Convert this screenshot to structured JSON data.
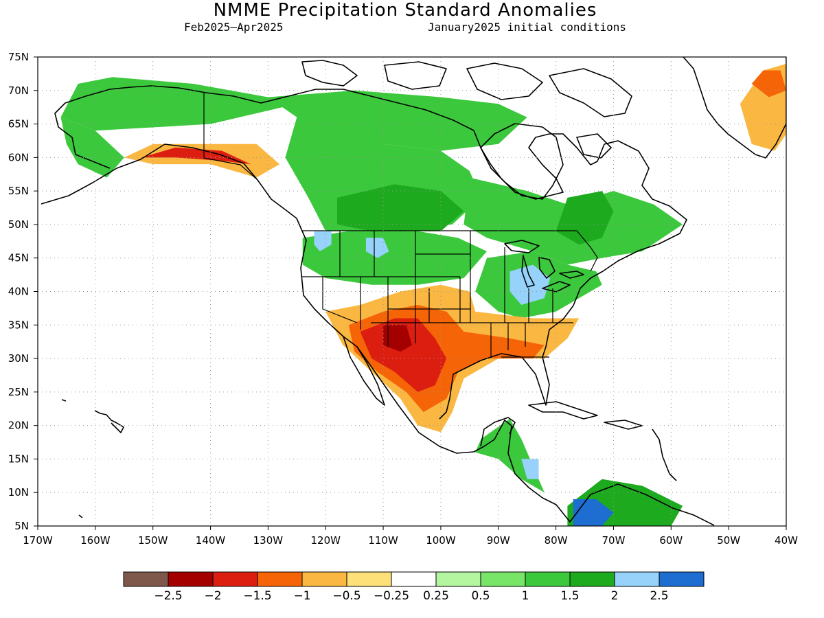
{
  "header": {
    "title": "NMME Precipitation Standard Anomalies",
    "period": "Feb2025–Apr2025",
    "init": "January2025 initial conditions"
  },
  "map": {
    "lon_range": [
      -170,
      -40
    ],
    "lat_range": [
      5,
      75
    ],
    "lon_ticks": [
      {
        "v": -170,
        "t": "170W"
      },
      {
        "v": -160,
        "t": "160W"
      },
      {
        "v": -150,
        "t": "150W"
      },
      {
        "v": -140,
        "t": "140W"
      },
      {
        "v": -130,
        "t": "130W"
      },
      {
        "v": -120,
        "t": "120W"
      },
      {
        "v": -110,
        "t": "110W"
      },
      {
        "v": -100,
        "t": "100W"
      },
      {
        "v": -90,
        "t": "90W"
      },
      {
        "v": -80,
        "t": "80W"
      },
      {
        "v": -70,
        "t": "70W"
      },
      {
        "v": -60,
        "t": "60W"
      },
      {
        "v": -50,
        "t": "50W"
      },
      {
        "v": -40,
        "t": "40W"
      }
    ],
    "lat_ticks": [
      {
        "v": 75,
        "t": "75N"
      },
      {
        "v": 70,
        "t": "70N"
      },
      {
        "v": 65,
        "t": "65N"
      },
      {
        "v": 60,
        "t": "60N"
      },
      {
        "v": 55,
        "t": "55N"
      },
      {
        "v": 50,
        "t": "50N"
      },
      {
        "v": 45,
        "t": "45N"
      },
      {
        "v": 40,
        "t": "40N"
      },
      {
        "v": 35,
        "t": "35N"
      },
      {
        "v": 30,
        "t": "30N"
      },
      {
        "v": 25,
        "t": "25N"
      },
      {
        "v": 20,
        "t": "20N"
      },
      {
        "v": 15,
        "t": "15N"
      },
      {
        "v": 10,
        "t": "10N"
      },
      {
        "v": 5,
        "t": "5N"
      }
    ],
    "grid": true,
    "anomaly_regions": [
      {
        "name": "alaska-north",
        "level": 1.25,
        "pts": [
          [
            -163,
            71
          ],
          [
            -157,
            72
          ],
          [
            -143,
            71
          ],
          [
            -130,
            69
          ],
          [
            -125,
            68
          ],
          [
            -140,
            65
          ],
          [
            -160,
            64
          ],
          [
            -166,
            66
          ]
        ]
      },
      {
        "name": "canada-north",
        "level": 1.25,
        "pts": [
          [
            -130,
            69
          ],
          [
            -115,
            70
          ],
          [
            -100,
            69
          ],
          [
            -90,
            68
          ],
          [
            -85,
            66
          ],
          [
            -90,
            62
          ],
          [
            -100,
            61
          ],
          [
            -110,
            62
          ],
          [
            -120,
            63
          ],
          [
            -125,
            66
          ]
        ]
      },
      {
        "name": "alaska-west",
        "level": 1.25,
        "pts": [
          [
            -166,
            66
          ],
          [
            -160,
            64
          ],
          [
            -155,
            60
          ],
          [
            -158,
            57
          ],
          [
            -163,
            59
          ],
          [
            -165,
            62
          ]
        ]
      },
      {
        "name": "canada-west",
        "level": 1.25,
        "pts": [
          [
            -125,
            66
          ],
          [
            -110,
            62
          ],
          [
            -100,
            61
          ],
          [
            -95,
            58
          ],
          [
            -93,
            54
          ],
          [
            -98,
            50
          ],
          [
            -110,
            49
          ],
          [
            -120,
            49
          ],
          [
            -123,
            54
          ],
          [
            -127,
            60
          ]
        ]
      },
      {
        "name": "canada-prairie",
        "level": 1.75,
        "pts": [
          [
            -118,
            54
          ],
          [
            -108,
            56
          ],
          [
            -100,
            55
          ],
          [
            -96,
            52
          ],
          [
            -100,
            49
          ],
          [
            -112,
            49
          ],
          [
            -118,
            50
          ]
        ]
      },
      {
        "name": "canada-east",
        "level": 1.25,
        "pts": [
          [
            -95,
            57
          ],
          [
            -85,
            55
          ],
          [
            -78,
            53
          ],
          [
            -70,
            55
          ],
          [
            -63,
            53
          ],
          [
            -58,
            50
          ],
          [
            -65,
            46
          ],
          [
            -72,
            45
          ],
          [
            -78,
            44
          ],
          [
            -84,
            46
          ],
          [
            -92,
            48
          ],
          [
            -96,
            50
          ]
        ]
      },
      {
        "name": "quebec-core",
        "level": 1.75,
        "pts": [
          [
            -78,
            54
          ],
          [
            -72,
            55
          ],
          [
            -70,
            52
          ],
          [
            -72,
            48
          ],
          [
            -76,
            47
          ],
          [
            -80,
            49
          ]
        ]
      },
      {
        "name": "nw-conus",
        "level": 1.25,
        "pts": [
          [
            -124,
            48
          ],
          [
            -116,
            49
          ],
          [
            -104,
            49
          ],
          [
            -97,
            48
          ],
          [
            -92,
            46
          ],
          [
            -96,
            42
          ],
          [
            -104,
            41
          ],
          [
            -112,
            41
          ],
          [
            -120,
            42
          ],
          [
            -124,
            44
          ]
        ]
      },
      {
        "name": "montana-wet",
        "level": 2.25,
        "pts": [
          [
            -113,
            48
          ],
          [
            -110,
            48
          ],
          [
            -109,
            46
          ],
          [
            -111,
            45
          ],
          [
            -113,
            46
          ]
        ]
      },
      {
        "name": "wa-wet",
        "level": 2.25,
        "pts": [
          [
            -122,
            49
          ],
          [
            -119,
            49
          ],
          [
            -119,
            47
          ],
          [
            -121,
            46
          ],
          [
            -122,
            47
          ]
        ]
      },
      {
        "name": "ohio-valley",
        "level": 1.25,
        "pts": [
          [
            -92,
            45
          ],
          [
            -84,
            46
          ],
          [
            -78,
            44
          ],
          [
            -73,
            43
          ],
          [
            -72,
            41
          ],
          [
            -76,
            39
          ],
          [
            -80,
            37
          ],
          [
            -86,
            36
          ],
          [
            -90,
            37
          ],
          [
            -94,
            40
          ]
        ]
      },
      {
        "name": "great-lakes-wet",
        "level": 2.25,
        "pts": [
          [
            -88,
            43
          ],
          [
            -84,
            44
          ],
          [
            -81,
            42
          ],
          [
            -82,
            39
          ],
          [
            -86,
            38
          ],
          [
            -88,
            40
          ]
        ]
      },
      {
        "name": "sw-dry-outer",
        "level": -0.75,
        "pts": [
          [
            -120,
            37
          ],
          [
            -114,
            38
          ],
          [
            -107,
            40
          ],
          [
            -100,
            41
          ],
          [
            -95,
            40
          ],
          [
            -94,
            37
          ],
          [
            -84,
            36
          ],
          [
            -76,
            36
          ],
          [
            -78,
            33
          ],
          [
            -82,
            30
          ],
          [
            -90,
            30
          ],
          [
            -96,
            27
          ],
          [
            -98,
            22
          ],
          [
            -100,
            19
          ],
          [
            -104,
            20
          ],
          [
            -107,
            24
          ],
          [
            -112,
            28
          ],
          [
            -117,
            32
          ]
        ]
      },
      {
        "name": "sw-dry-mid",
        "level": -1.25,
        "pts": [
          [
            -116,
            35
          ],
          [
            -110,
            37
          ],
          [
            -104,
            38
          ],
          [
            -99,
            37
          ],
          [
            -96,
            34
          ],
          [
            -88,
            33
          ],
          [
            -82,
            32
          ],
          [
            -84,
            30
          ],
          [
            -92,
            30
          ],
          [
            -97,
            28
          ],
          [
            -99,
            24
          ],
          [
            -103,
            22
          ],
          [
            -106,
            25
          ],
          [
            -111,
            28
          ],
          [
            -115,
            31
          ]
        ]
      },
      {
        "name": "sw-dry-core",
        "level": -1.75,
        "pts": [
          [
            -114,
            34
          ],
          [
            -108,
            36
          ],
          [
            -104,
            36
          ],
          [
            -101,
            33
          ],
          [
            -99,
            30
          ],
          [
            -101,
            26
          ],
          [
            -104,
            25
          ],
          [
            -108,
            28
          ],
          [
            -112,
            30
          ]
        ]
      },
      {
        "name": "sw-dry-max",
        "level": -2.25,
        "pts": [
          [
            -110,
            35
          ],
          [
            -106,
            35
          ],
          [
            -105,
            32
          ],
          [
            -107,
            31
          ],
          [
            -110,
            32
          ]
        ]
      },
      {
        "name": "gulf-alaska-outer",
        "level": -0.75,
        "pts": [
          [
            -155,
            60
          ],
          [
            -150,
            62
          ],
          [
            -140,
            62
          ],
          [
            -132,
            62
          ],
          [
            -128,
            59
          ],
          [
            -132,
            57
          ],
          [
            -140,
            59
          ],
          [
            -150,
            59
          ]
        ]
      },
      {
        "name": "gulf-alaska-core",
        "level": -1.75,
        "pts": [
          [
            -152,
            60
          ],
          [
            -146,
            61.5
          ],
          [
            -138,
            61
          ],
          [
            -133,
            59
          ],
          [
            -138,
            59.5
          ],
          [
            -146,
            60
          ]
        ]
      },
      {
        "name": "greenland-dry",
        "level": -0.75,
        "pts": [
          [
            -44,
            73
          ],
          [
            -40,
            74
          ],
          [
            -36,
            72
          ],
          [
            -38,
            66
          ],
          [
            -42,
            61
          ],
          [
            -46,
            62
          ],
          [
            -48,
            68
          ]
        ]
      },
      {
        "name": "greenland-core",
        "level": -1.25,
        "pts": [
          [
            -44,
            73
          ],
          [
            -41,
            73
          ],
          [
            -40,
            70
          ],
          [
            -43,
            69
          ],
          [
            -46,
            71
          ]
        ]
      },
      {
        "name": "central-america-wet",
        "level": 1.25,
        "pts": [
          [
            -93,
            18
          ],
          [
            -88,
            21
          ],
          [
            -86,
            18
          ],
          [
            -84,
            14
          ],
          [
            -82,
            10
          ],
          [
            -86,
            12
          ],
          [
            -90,
            15
          ],
          [
            -94,
            16
          ]
        ]
      },
      {
        "name": "honduras-wet",
        "level": 2.25,
        "pts": [
          [
            -86,
            15
          ],
          [
            -83,
            15
          ],
          [
            -83,
            12
          ],
          [
            -85,
            12
          ]
        ]
      },
      {
        "name": "south-america-wet",
        "level": 1.75,
        "pts": [
          [
            -78,
            8
          ],
          [
            -72,
            12
          ],
          [
            -65,
            11
          ],
          [
            -58,
            8
          ],
          [
            -60,
            5
          ],
          [
            -78,
            5
          ]
        ]
      },
      {
        "name": "colombia-wet",
        "level": 2.75,
        "pts": [
          [
            -77,
            9
          ],
          [
            -73,
            9
          ],
          [
            -70,
            7
          ],
          [
            -72,
            5
          ],
          [
            -77,
            5
          ]
        ]
      }
    ]
  },
  "colorbar": {
    "colors": [
      "#7f584c",
      "#a50000",
      "#dc1e10",
      "#f56508",
      "#fab842",
      "#fde178",
      "#ffffff",
      "#b4f5a0",
      "#78e569",
      "#3cc83c",
      "#1eaa1e",
      "#96d2fa",
      "#1e6ed2"
    ],
    "bounds": [
      -3,
      -2.5,
      -2,
      -1.5,
      -1,
      -0.5,
      -0.25,
      0.25,
      0.5,
      1,
      1.5,
      2,
      2.5,
      3
    ],
    "labels": [
      "−2.5",
      "−2",
      "−1.5",
      "−1",
      "−0.5",
      "−0.25",
      "0.25",
      "0.5",
      "1",
      "1.5",
      "2",
      "2.5"
    ]
  }
}
